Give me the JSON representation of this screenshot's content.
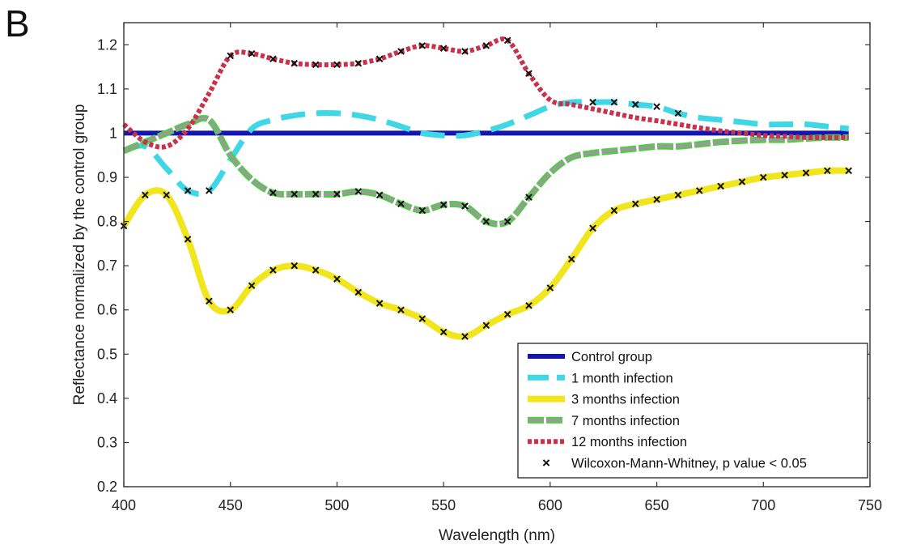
{
  "panel_label": "B",
  "chart_data": {
    "type": "line",
    "title": "",
    "xlabel": "Wavelength (nm)",
    "ylabel": "Reflectance normalized by the control group",
    "xlim": [
      400,
      750
    ],
    "ylim": [
      0.2,
      1.25
    ],
    "xticks": [
      400,
      450,
      500,
      550,
      600,
      650,
      700,
      750
    ],
    "yticks": [
      0.2,
      0.3,
      0.4,
      0.5,
      0.6,
      0.7,
      0.8,
      0.9,
      1,
      1.1,
      1.2
    ],
    "ytick_labels": [
      "0.2",
      "0.3",
      "0.4",
      "0.5",
      "0.6",
      "0.7",
      "0.8",
      "0.9",
      "1",
      "1.1",
      "1.2"
    ],
    "grid": false,
    "legend_position": "bottom-right",
    "x": [
      400,
      410,
      420,
      430,
      440,
      450,
      460,
      470,
      480,
      490,
      500,
      510,
      520,
      530,
      540,
      550,
      560,
      570,
      580,
      590,
      600,
      610,
      620,
      630,
      640,
      650,
      660,
      670,
      680,
      690,
      700,
      710,
      720,
      730,
      740
    ],
    "series": [
      {
        "name": "Control group",
        "style": "solid",
        "color": "#1414b4",
        "values": [
          1,
          1,
          1,
          1,
          1,
          1,
          1,
          1,
          1,
          1,
          1,
          1,
          1,
          1,
          1,
          1,
          1,
          1,
          1,
          1,
          1,
          1,
          1,
          1,
          1,
          1,
          1,
          1,
          1,
          1,
          1,
          1,
          1,
          1,
          1
        ],
        "significant_x": []
      },
      {
        "name": "1 month infection",
        "style": "dashed",
        "color": "#3fd7e6",
        "values": [
          0.96,
          0.97,
          0.92,
          0.87,
          0.87,
          0.94,
          1.01,
          1.03,
          1.04,
          1.045,
          1.045,
          1.04,
          1.03,
          1.015,
          1.0,
          0.995,
          0.995,
          1.005,
          1.02,
          1.04,
          1.06,
          1.07,
          1.07,
          1.07,
          1.065,
          1.06,
          1.045,
          1.035,
          1.03,
          1.025,
          1.02,
          1.02,
          1.02,
          1.015,
          1.01
        ],
        "significant_x": [
          430,
          440,
          620,
          630,
          640,
          650,
          660
        ]
      },
      {
        "name": "3 months infection",
        "style": "solid-thick",
        "color": "#f1e61e",
        "values": [
          0.79,
          0.86,
          0.86,
          0.76,
          0.62,
          0.6,
          0.655,
          0.69,
          0.7,
          0.69,
          0.67,
          0.64,
          0.615,
          0.6,
          0.58,
          0.55,
          0.54,
          0.565,
          0.59,
          0.61,
          0.65,
          0.715,
          0.785,
          0.825,
          0.84,
          0.85,
          0.86,
          0.87,
          0.88,
          0.89,
          0.9,
          0.905,
          0.91,
          0.915,
          0.915
        ],
        "significant_x": [
          400,
          410,
          420,
          430,
          440,
          450,
          460,
          470,
          480,
          490,
          500,
          510,
          520,
          530,
          540,
          550,
          560,
          570,
          580,
          590,
          600,
          610,
          620,
          630,
          640,
          650,
          660,
          670,
          680,
          690,
          700,
          710,
          720,
          730,
          740
        ]
      },
      {
        "name": "7 months infection",
        "style": "dashed-double",
        "color": "#9a9a9a",
        "outline": "#4ad23c",
        "values": [
          0.96,
          0.98,
          1.0,
          1.02,
          1.03,
          0.95,
          0.895,
          0.865,
          0.862,
          0.862,
          0.862,
          0.868,
          0.86,
          0.84,
          0.825,
          0.838,
          0.835,
          0.8,
          0.8,
          0.855,
          0.91,
          0.945,
          0.955,
          0.96,
          0.965,
          0.97,
          0.97,
          0.975,
          0.98,
          0.983,
          0.985,
          0.985,
          0.988,
          0.99,
          0.99
        ],
        "significant_x": [
          470,
          480,
          490,
          500,
          510,
          520,
          530,
          540,
          550,
          560,
          570,
          580,
          590
        ]
      },
      {
        "name": "12 months infection",
        "style": "dotted",
        "color": "#c8324a",
        "values": [
          1.02,
          0.98,
          0.97,
          1.01,
          1.09,
          1.175,
          1.18,
          1.168,
          1.158,
          1.155,
          1.155,
          1.158,
          1.168,
          1.185,
          1.198,
          1.192,
          1.185,
          1.198,
          1.21,
          1.135,
          1.075,
          1.065,
          1.055,
          1.045,
          1.035,
          1.028,
          1.02,
          1.012,
          1.005,
          1.0,
          0.995,
          0.993,
          0.99,
          0.99,
          0.99
        ],
        "significant_x": [
          450,
          460,
          470,
          480,
          490,
          500,
          510,
          520,
          530,
          540,
          550,
          560,
          570,
          580,
          590
        ]
      }
    ],
    "marker_legend": "Wilcoxon-Mann-Whitney, p value < 0.05"
  }
}
